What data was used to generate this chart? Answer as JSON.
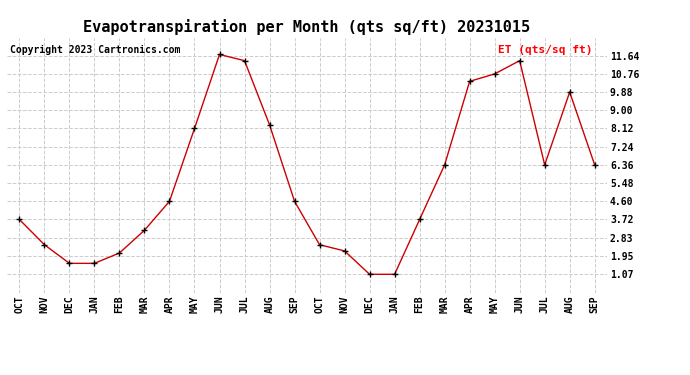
{
  "title": "Evapotranspiration per Month (qts sq/ft) 20231015",
  "copyright_text": "Copyright 2023 Cartronics.com",
  "legend_label": "ET (qts/sq ft)",
  "months": [
    "OCT",
    "NOV",
    "DEC",
    "JAN",
    "FEB",
    "MAR",
    "APR",
    "MAY",
    "JUN",
    "JUL",
    "AUG",
    "SEP",
    "OCT",
    "NOV",
    "DEC",
    "JAN",
    "FEB",
    "MAR",
    "APR",
    "MAY",
    "JUN",
    "JUL",
    "AUG",
    "SEP"
  ],
  "values": [
    3.72,
    2.5,
    1.6,
    1.6,
    2.1,
    3.2,
    4.6,
    8.12,
    11.7,
    11.4,
    8.3,
    4.6,
    2.5,
    2.2,
    1.07,
    1.07,
    3.72,
    6.36,
    10.4,
    10.76,
    11.4,
    6.36,
    9.88,
    6.36
  ],
  "line_color": "#cc0000",
  "marker": "+",
  "marker_color": "#000000",
  "marker_size": 5,
  "ylim": [
    0.19,
    12.52
  ],
  "yticks": [
    1.07,
    1.95,
    2.83,
    3.72,
    4.6,
    5.48,
    6.36,
    7.24,
    8.12,
    9.0,
    9.88,
    10.76,
    11.64
  ],
  "grid_color": "#cccccc",
  "grid_style": "--",
  "bg_color": "#ffffff",
  "title_fontsize": 11,
  "tick_fontsize": 7,
  "legend_fontsize": 8,
  "copyright_fontsize": 7
}
